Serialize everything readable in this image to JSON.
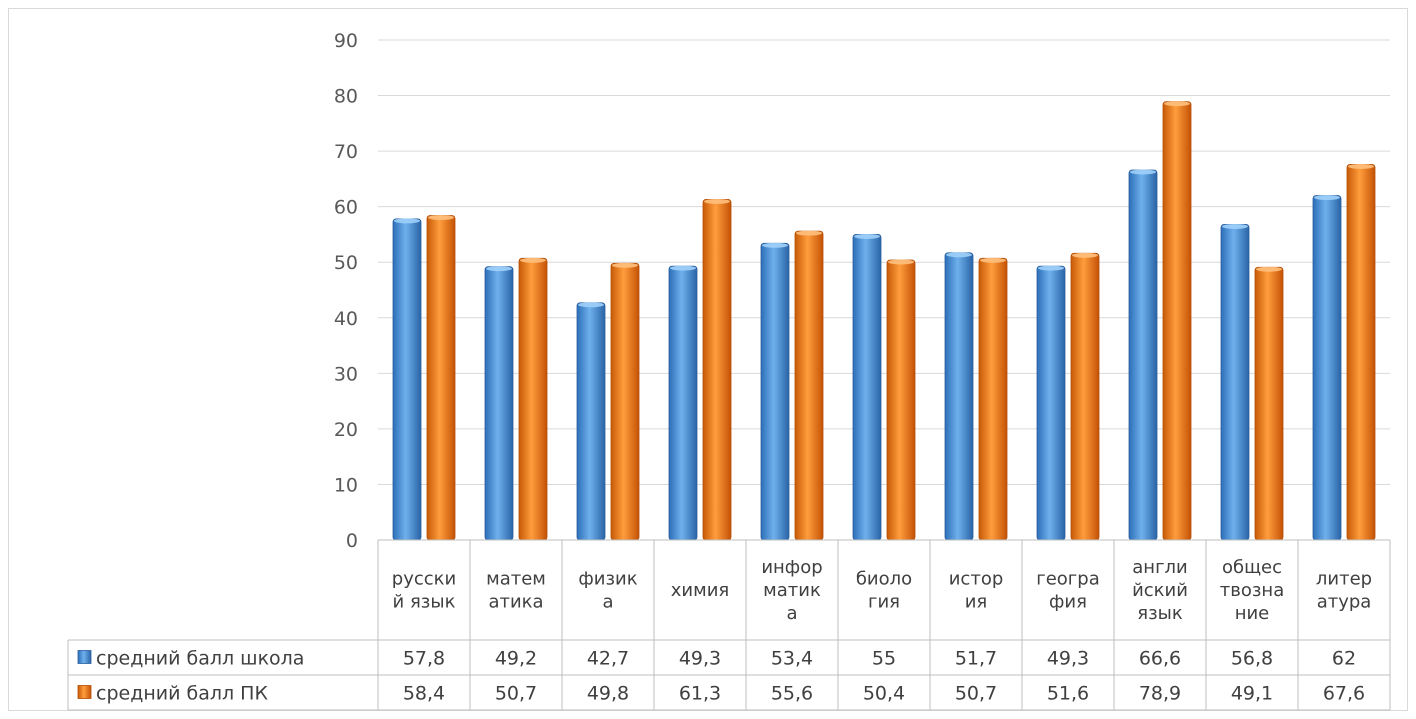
{
  "chart_data": {
    "type": "bar",
    "categories": [
      [
        "русски",
        "й язык"
      ],
      [
        "матем",
        "атика"
      ],
      [
        "физик",
        "а"
      ],
      [
        "химия"
      ],
      [
        "инфор",
        "матик",
        "а"
      ],
      [
        "биоло",
        "гия"
      ],
      [
        "истор",
        "ия"
      ],
      [
        "геогра",
        "фия"
      ],
      [
        "англи",
        "йский",
        "язык"
      ],
      [
        "общес",
        "твозна",
        "ние"
      ],
      [
        "литер",
        "атура"
      ]
    ],
    "series": [
      {
        "name": "средний балл школа",
        "values": [
          57.8,
          49.2,
          42.7,
          49.3,
          53.4,
          55,
          51.7,
          49.3,
          66.6,
          56.8,
          62
        ],
        "labels": [
          "57,8",
          "49,2",
          "42,7",
          "49,3",
          "53,4",
          "55",
          "51,7",
          "49,3",
          "66,6",
          "56,8",
          "62"
        ],
        "color": "#4a8fd4"
      },
      {
        "name": "средний балл ПК",
        "values": [
          58.4,
          50.7,
          49.8,
          61.3,
          55.6,
          50.4,
          50.7,
          51.6,
          78.9,
          49.1,
          67.6
        ],
        "labels": [
          "58,4",
          "50,7",
          "49,8",
          "61,3",
          "55,6",
          "50,4",
          "50,7",
          "51,6",
          "78,9",
          "49,1",
          "67,6"
        ],
        "color": "#f07a1a"
      }
    ],
    "yticks": [
      "0",
      "10",
      "20",
      "30",
      "40",
      "50",
      "60",
      "70",
      "80",
      "90"
    ],
    "ylim": [
      0,
      90
    ],
    "grid": true,
    "data_table": true
  }
}
